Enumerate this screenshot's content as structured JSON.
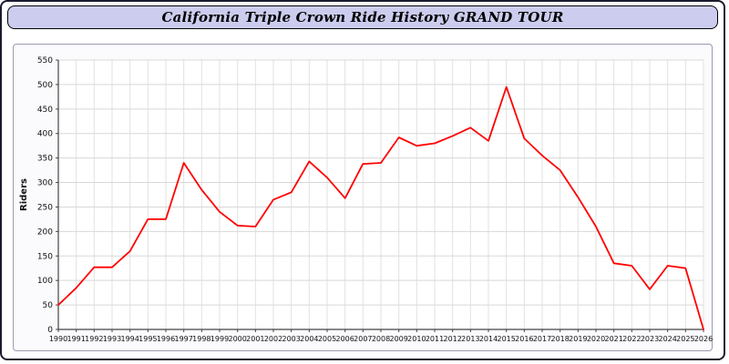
{
  "title_bar": {
    "title": "California Triple Crown Ride History GRAND TOUR"
  },
  "chart_data": {
    "type": "line",
    "title": "California Triple Crown Ride History GRAND TOUR",
    "xlabel": "",
    "ylabel": "Riders",
    "ylim": [
      0,
      550
    ],
    "ytick_step": 50,
    "grid": true,
    "legend_position": "none",
    "line_color": "#ff0000",
    "grid_color": "#d8d8d8",
    "axis_color": "#444444",
    "plot_bg": "#ffffff",
    "x": [
      1990,
      1991,
      1992,
      1993,
      1994,
      1995,
      1996,
      1997,
      1998,
      1999,
      2000,
      2001,
      2002,
      2003,
      2004,
      2005,
      2006,
      2007,
      2008,
      2009,
      2010,
      2011,
      2012,
      2013,
      2014,
      2015,
      2016,
      2017,
      2018,
      2019,
      2020,
      2021,
      2022,
      2023,
      2024,
      2025,
      2026
    ],
    "values": [
      50,
      85,
      127,
      127,
      160,
      225,
      225,
      340,
      285,
      240,
      212,
      210,
      265,
      280,
      343,
      310,
      268,
      338,
      340,
      392,
      375,
      380,
      395,
      412,
      385,
      495,
      390,
      355,
      325,
      270,
      210,
      135,
      130,
      82,
      130,
      125,
      0
    ]
  }
}
